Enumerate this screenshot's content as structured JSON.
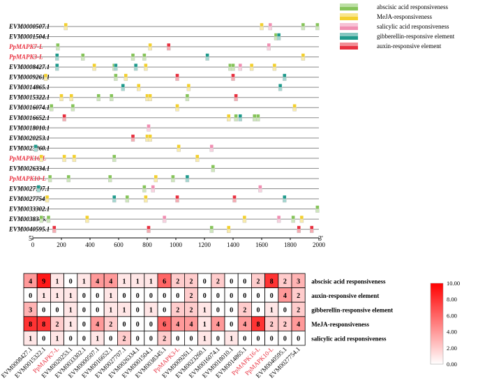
{
  "chart_data": [
    {
      "type": "diagram",
      "title": "",
      "axis": {
        "min": 0,
        "max": 2000,
        "ticks": [
          0,
          200,
          400,
          600,
          800,
          1000,
          1200,
          1400,
          1600,
          1800,
          2000
        ],
        "tick_labels": [
          "0",
          "200",
          "400",
          "600",
          "800",
          "1000",
          "1200",
          "1400",
          "1600",
          "1800",
          "2000"
        ],
        "left_label": "5'",
        "right_label": "3'"
      },
      "legend": [
        {
          "key": "aba",
          "label": "abscisic acid responsiveness",
          "color": "#86c45a"
        },
        {
          "key": "meja",
          "label": "MeJA-responsiveness",
          "color": "#f3d02e"
        },
        {
          "key": "sa",
          "label": "salicylic acid responsiveness",
          "color": "#f18fb2"
        },
        {
          "key": "ga",
          "label": "gibberellin-responsive element",
          "color": "#1f9a8c"
        },
        {
          "key": "auxin",
          "label": "auxin-responsive element",
          "color": "#e8303f"
        }
      ],
      "genes": [
        {
          "name": "EVM0000507.1",
          "highlight": false,
          "elements": [
            [
              230,
              "meja"
            ],
            [
              1600,
              "meja"
            ],
            [
              1660,
              "sa"
            ],
            [
              1890,
              "aba"
            ],
            [
              1990,
              "aba"
            ]
          ]
        },
        {
          "name": "EVM0001504.1",
          "highlight": false,
          "elements": [
            [
              1700,
              "aba"
            ],
            [
              1720,
              "ga"
            ]
          ]
        },
        {
          "name": "PpMAPK7-L",
          "highlight": true,
          "elements": [
            [
              175,
              "aba"
            ],
            [
              820,
              "meja"
            ],
            [
              950,
              "auxin"
            ],
            [
              1650,
              "sa"
            ]
          ]
        },
        {
          "name": "PpMAPK3-L",
          "highlight": true,
          "elements": [
            [
              170,
              "ga"
            ],
            [
              350,
              "aba"
            ],
            [
              700,
              "aba"
            ],
            [
              780,
              "aba"
            ],
            [
              1220,
              "ga"
            ],
            [
              1890,
              "meja"
            ]
          ]
        },
        {
          "name": "EVM0008427.1",
          "highlight": false,
          "elements": [
            [
              170,
              "ga"
            ],
            [
              430,
              "meja"
            ],
            [
              570,
              "aba"
            ],
            [
              580,
              "ga"
            ],
            [
              720,
              "ga"
            ],
            [
              790,
              "meja"
            ],
            [
              1380,
              "aba"
            ],
            [
              1400,
              "aba"
            ],
            [
              1450,
              "sa"
            ],
            [
              1530,
              "meja"
            ],
            [
              1690,
              "meja"
            ]
          ]
        },
        {
          "name": "EVM0009261.1",
          "highlight": false,
          "elements": [
            [
              90,
              "meja"
            ],
            [
              580,
              "aba"
            ],
            [
              650,
              "meja"
            ],
            [
              1010,
              "auxin"
            ],
            [
              1400,
              "auxin"
            ],
            [
              1760,
              "ga"
            ]
          ]
        },
        {
          "name": "EVM0014865.1",
          "highlight": false,
          "elements": [
            [
              630,
              "ga"
            ],
            [
              740,
              "meja"
            ],
            [
              1090,
              "meja"
            ],
            [
              1730,
              "ga"
            ]
          ]
        },
        {
          "name": "EVM0015322.1",
          "highlight": false,
          "elements": [
            [
              200,
              "meja"
            ],
            [
              270,
              "meja"
            ],
            [
              460,
              "aba"
            ],
            [
              550,
              "aba"
            ],
            [
              800,
              "meja"
            ],
            [
              820,
              "meja"
            ],
            [
              1080,
              "aba"
            ],
            [
              1420,
              "auxin"
            ]
          ]
        },
        {
          "name": "EVM0016074.1",
          "highlight": false,
          "elements": [
            [
              130,
              "aba"
            ],
            [
              280,
              "aba"
            ],
            [
              1010,
              "meja"
            ],
            [
              1830,
              "meja"
            ]
          ]
        },
        {
          "name": "EVM0016652.1",
          "highlight": false,
          "elements": [
            [
              220,
              "auxin"
            ],
            [
              1370,
              "meja"
            ],
            [
              1420,
              "aba"
            ],
            [
              1450,
              "ga"
            ],
            [
              1550,
              "aba"
            ],
            [
              1575,
              "aba"
            ]
          ]
        },
        {
          "name": "EVM0018010.1",
          "highlight": false,
          "elements": [
            [
              810,
              "sa"
            ]
          ]
        },
        {
          "name": "EVM0020253.1",
          "highlight": false,
          "elements": [
            [
              700,
              "auxin"
            ],
            [
              800,
              "meja"
            ],
            [
              820,
              "meja"
            ]
          ]
        },
        {
          "name": "EVM0023260.1",
          "highlight": false,
          "elements": [
            [
              20,
              "ga"
            ],
            [
              1020,
              "meja"
            ],
            [
              1250,
              "sa"
            ]
          ]
        },
        {
          "name": "PpMAPK16-L",
          "highlight": true,
          "elements": [
            [
              60,
              "meja"
            ],
            [
              220,
              "meja"
            ],
            [
              290,
              "meja"
            ],
            [
              570,
              "aba"
            ],
            [
              1150,
              "meja"
            ]
          ]
        },
        {
          "name": "EVM0026334.1",
          "highlight": false,
          "elements": [
            [
              1260,
              "aba"
            ]
          ]
        },
        {
          "name": "PpMAPK10-L",
          "highlight": true,
          "elements": [
            [
              120,
              "aba"
            ],
            [
              250,
              "aba"
            ],
            [
              540,
              "aba"
            ],
            [
              860,
              "meja"
            ],
            [
              980,
              "aba"
            ],
            [
              1080,
              "ga"
            ]
          ]
        },
        {
          "name": "EVM0027707.1",
          "highlight": false,
          "elements": [
            [
              40,
              "ga"
            ],
            [
              780,
              "aba"
            ],
            [
              840,
              "sa"
            ],
            [
              1590,
              "sa"
            ]
          ]
        },
        {
          "name": "EVM0027754.1",
          "highlight": false,
          "elements": [
            [
              100,
              "meja"
            ],
            [
              570,
              "ga"
            ],
            [
              660,
              "aba"
            ],
            [
              790,
              "meja"
            ],
            [
              1010,
              "auxin"
            ],
            [
              1410,
              "auxin"
            ],
            [
              1760,
              "ga"
            ]
          ]
        },
        {
          "name": "EVM0033302.1",
          "highlight": false,
          "elements": [
            [
              1990,
              "aba"
            ]
          ]
        },
        {
          "name": "EVM0038345.1",
          "highlight": false,
          "elements": [
            [
              60,
              "aba"
            ],
            [
              110,
              "aba"
            ],
            [
              380,
              "meja"
            ],
            [
              920,
              "sa"
            ],
            [
              1480,
              "meja"
            ],
            [
              1720,
              "sa"
            ],
            [
              1820,
              "aba"
            ],
            [
              1880,
              "meja"
            ]
          ]
        },
        {
          "name": "EVM0040595.1",
          "highlight": false,
          "elements": [
            [
              150,
              "auxin"
            ],
            [
              810,
              "auxin"
            ],
            [
              1250,
              "aba"
            ],
            [
              1370,
              "meja"
            ],
            [
              1860,
              "auxin"
            ],
            [
              1950,
              "auxin"
            ]
          ]
        }
      ]
    },
    {
      "type": "heatmap",
      "title": "",
      "columns": [
        {
          "label": "EVM0008427.1",
          "highlight": false
        },
        {
          "label": "EVM0015322.1",
          "highlight": false
        },
        {
          "label": "PpMAPK7-L",
          "highlight": true
        },
        {
          "label": "EVM0020253.1",
          "highlight": false
        },
        {
          "label": "EVM0033302.1",
          "highlight": false
        },
        {
          "label": "EVM0000507.1",
          "highlight": false
        },
        {
          "label": "EVM0016652.1",
          "highlight": false
        },
        {
          "label": "EVM0027707.1",
          "highlight": false
        },
        {
          "label": "EVM0026334.1",
          "highlight": false
        },
        {
          "label": "EVM0001504.1",
          "highlight": false
        },
        {
          "label": "EVM0038345.1",
          "highlight": false
        },
        {
          "label": "PpMAPK3-L",
          "highlight": true
        },
        {
          "label": "EVM0009261.1",
          "highlight": false
        },
        {
          "label": "EVM0023260.1",
          "highlight": false
        },
        {
          "label": "EVM0016074.1",
          "highlight": false
        },
        {
          "label": "EVM0018010.1",
          "highlight": false
        },
        {
          "label": "EVM0014865.1",
          "highlight": false
        },
        {
          "label": "PpMAPK16-L",
          "highlight": true
        },
        {
          "label": "PpMAPK10-L",
          "highlight": true
        },
        {
          "label": "EVM0040595.1",
          "highlight": false
        },
        {
          "label": "EVM0027754.1",
          "highlight": false
        }
      ],
      "rows": [
        {
          "label": "abscisic acid responsiveness",
          "values": [
            4,
            9,
            1,
            0,
            1,
            4,
            4,
            1,
            1,
            1,
            6,
            2,
            2,
            0,
            2,
            0,
            0,
            2,
            8,
            2,
            3
          ]
        },
        {
          "label": "auxin-responsive element",
          "values": [
            0,
            1,
            1,
            1,
            0,
            0,
            1,
            0,
            0,
            0,
            0,
            0,
            2,
            0,
            0,
            0,
            0,
            0,
            0,
            4,
            2
          ]
        },
        {
          "label": "gibberellin-responsive element",
          "values": [
            3,
            0,
            0,
            1,
            0,
            0,
            1,
            1,
            0,
            1,
            0,
            2,
            2,
            1,
            0,
            0,
            2,
            0,
            1,
            0,
            2
          ]
        },
        {
          "label": "MeJA-responsiveness",
          "values": [
            8,
            8,
            2,
            1,
            0,
            4,
            2,
            0,
            0,
            0,
            6,
            4,
            4,
            1,
            4,
            0,
            4,
            8,
            2,
            2,
            4
          ]
        },
        {
          "label": "salicylic acid responsiveness",
          "values": [
            1,
            0,
            1,
            0,
            0,
            1,
            0,
            2,
            0,
            0,
            2,
            0,
            0,
            1,
            0,
            1,
            0,
            0,
            0,
            0,
            0
          ]
        }
      ],
      "colorbar": {
        "min": 0,
        "max": 10,
        "ticks": [
          "0.00",
          "2.00",
          "4.00",
          "6.00",
          "8.00",
          "10.00"
        ],
        "low_color": "#ffffff",
        "high_color": "#ff0000"
      }
    }
  ],
  "colors": {
    "highlight_text": "#e8303f",
    "normal_text": "#000000",
    "line": "#8a8a8a"
  }
}
